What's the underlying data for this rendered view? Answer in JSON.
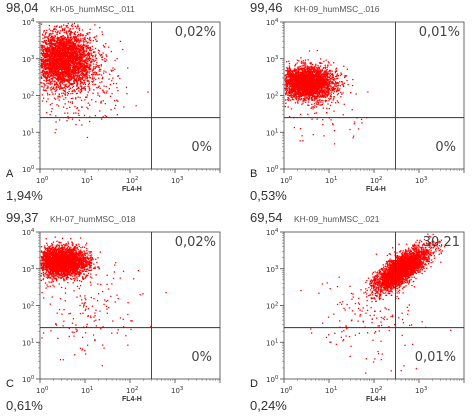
{
  "chart_data": [
    {
      "type": "scatter",
      "letter": "A",
      "file": "KH-05_humMSC_.011",
      "top_left": "98,04",
      "top_right": "0,02%",
      "bottom_right": "0%",
      "bottom_left": "1,94%",
      "xlabel": "FL4-H",
      "xtick_exponents": [
        "0",
        "1",
        "2",
        "3"
      ],
      "ytick_exponents": [
        "0",
        "1",
        "2",
        "3",
        "4"
      ],
      "scale": "log",
      "xlim": [
        1,
        10000
      ],
      "ylim": [
        1,
        10000
      ],
      "gate": {
        "x": 300,
        "y": 25
      },
      "point_color": "#ff0000",
      "populations": [
        {
          "log_x": 0.5,
          "log_y": 3.0,
          "spread_x": 0.35,
          "spread_y": 0.38,
          "n": 3400
        },
        {
          "log_x": 0.9,
          "log_y": 2.2,
          "spread_x": 0.45,
          "spread_y": 0.5,
          "n": 250
        }
      ]
    },
    {
      "type": "scatter",
      "letter": "B",
      "file": "KH-09_humMSC_.016",
      "top_left": "99,46",
      "top_right": "0,01%",
      "bottom_right": "0%",
      "bottom_left": "0,53%",
      "xlabel": "FL4-H",
      "xtick_exponents": [
        "0",
        "1",
        "2",
        "3"
      ],
      "ytick_exponents": [
        "0",
        "1",
        "2",
        "3",
        "4"
      ],
      "scale": "log",
      "xlim": [
        1,
        10000
      ],
      "ylim": [
        1,
        10000
      ],
      "gate": {
        "x": 300,
        "y": 25
      },
      "point_color": "#ff0000",
      "populations": [
        {
          "log_x": 0.5,
          "log_y": 2.35,
          "spread_x": 0.3,
          "spread_y": 0.22,
          "n": 3000
        },
        {
          "log_x": 1.0,
          "log_y": 1.6,
          "spread_x": 0.5,
          "spread_y": 0.4,
          "n": 60
        }
      ]
    },
    {
      "type": "scatter",
      "letter": "C",
      "file": "KH-07_humMSC_.018",
      "top_left": "99,37",
      "top_right": "0,02%",
      "bottom_right": "0%",
      "bottom_left": "0,61%",
      "xlabel": "FL4-H",
      "xtick_exponents": [
        "0",
        "1",
        "2",
        "3"
      ],
      "ytick_exponents": [
        "0",
        "1",
        "2",
        "3",
        "4"
      ],
      "scale": "log",
      "xlim": [
        1,
        10000
      ],
      "ylim": [
        1,
        10000
      ],
      "gate": {
        "x": 300,
        "y": 25
      },
      "point_color": "#ff0000",
      "populations": [
        {
          "log_x": 0.5,
          "log_y": 3.2,
          "spread_x": 0.28,
          "spread_y": 0.2,
          "n": 3000
        },
        {
          "log_x": 1.0,
          "log_y": 2.0,
          "spread_x": 0.6,
          "spread_y": 0.7,
          "n": 180
        }
      ]
    },
    {
      "type": "scatter",
      "letter": "D",
      "file": "KH-09_humMSC_.021",
      "top_left": "69,54",
      "top_right": "30,21",
      "bottom_right": "0,01%",
      "bottom_left": "0,24%",
      "xlabel": "FL4-H",
      "xtick_exponents": [
        "0",
        "1",
        "2",
        "3"
      ],
      "ytick_exponents": [
        "0",
        "1",
        "2",
        "3",
        "4"
      ],
      "scale": "log",
      "xlim": [
        1,
        10000
      ],
      "ylim": [
        1,
        10000
      ],
      "gate": {
        "x": 300,
        "y": 25
      },
      "point_color": "#ff0000",
      "populations": [
        {
          "log_x": 2.6,
          "log_y": 3.0,
          "spread_x": 0.3,
          "spread_y": 0.3,
          "n": 3000,
          "correlated": true
        },
        {
          "log_x": 1.8,
          "log_y": 1.6,
          "spread_x": 0.6,
          "spread_y": 0.6,
          "n": 140
        }
      ]
    }
  ]
}
